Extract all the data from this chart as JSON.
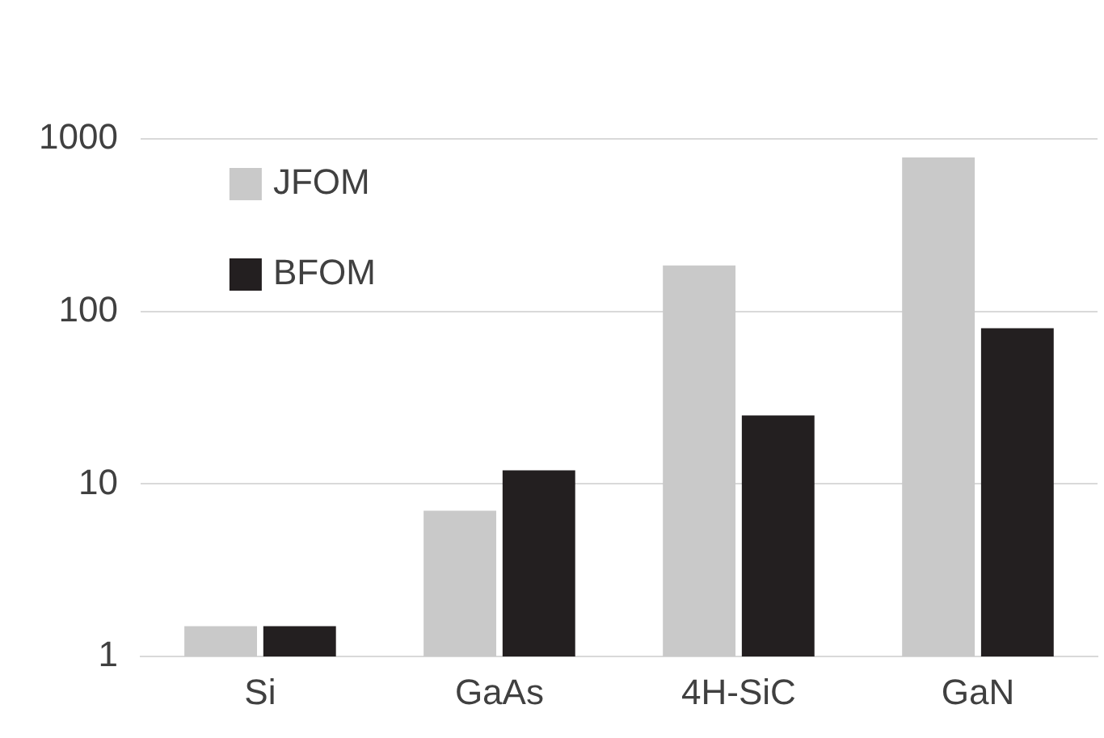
{
  "chart_data": {
    "type": "bar",
    "categories": [
      "Si",
      "GaAs",
      "4H-SiC",
      "GaN"
    ],
    "series": [
      {
        "name": "JFOM",
        "color": "#c9c9c9",
        "values": [
          1.5,
          7,
          185,
          780
        ]
      },
      {
        "name": "BFOM",
        "color": "#231f20",
        "values": [
          1.5,
          12,
          25,
          80
        ]
      }
    ],
    "log": "y",
    "ylim": [
      1,
      1000
    ],
    "yticks": [
      1,
      10,
      100,
      1000
    ],
    "grid": "y",
    "legend": "top left"
  }
}
